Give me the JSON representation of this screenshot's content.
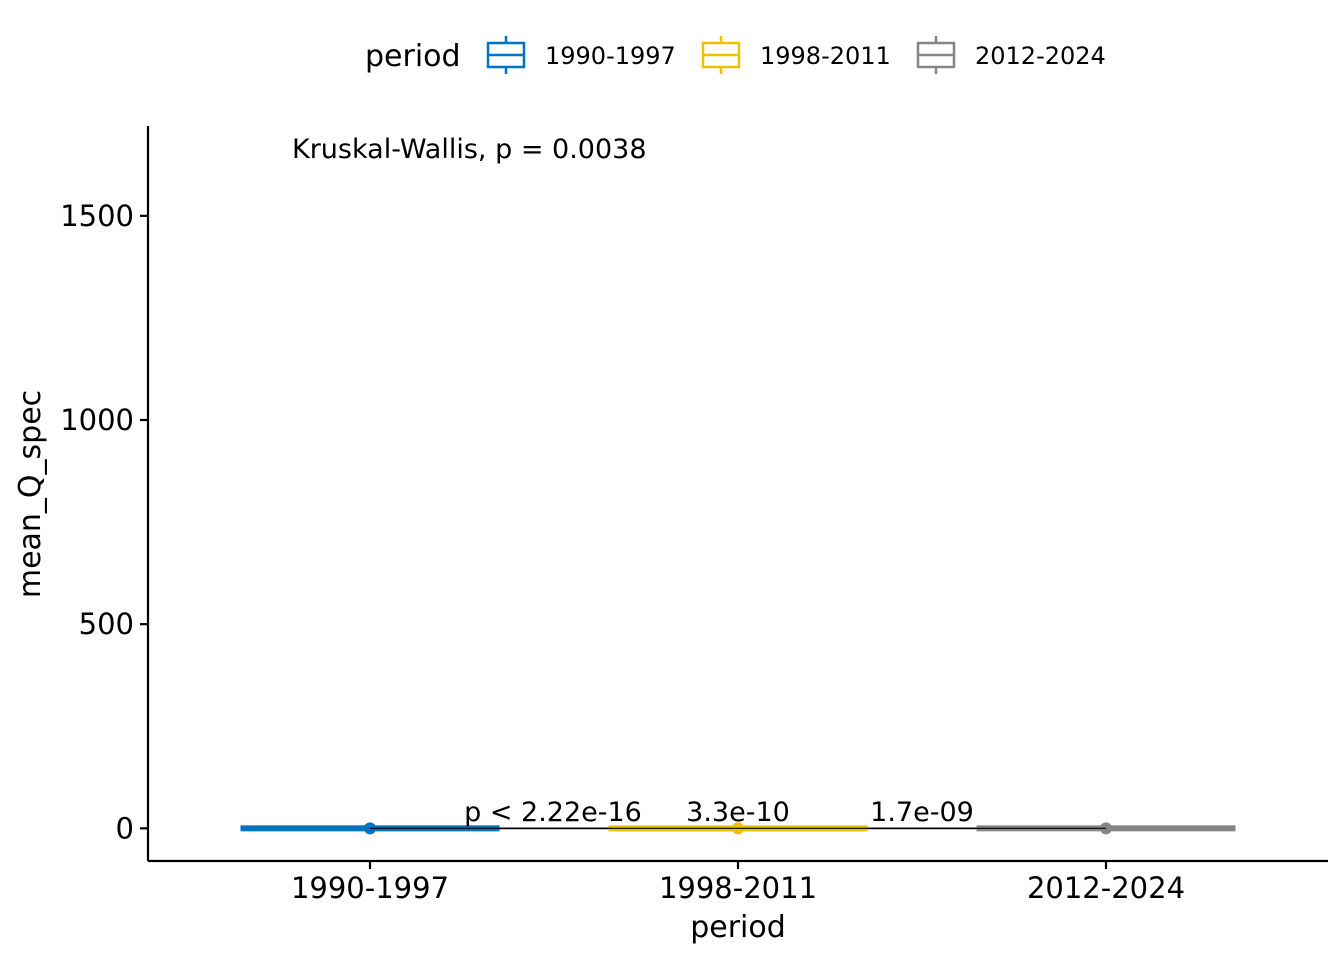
{
  "chart_data": {
    "type": "box",
    "xlabel": "period",
    "ylabel": "mean_Q_spec",
    "categories": [
      "1990-1997",
      "1998-2011",
      "2012-2024"
    ],
    "colors": [
      "#0073C2",
      "#EFC000",
      "#868686"
    ],
    "ylim": [
      -80,
      1720
    ],
    "yticks": [
      0,
      500,
      1000,
      1500
    ],
    "ytick_labels": [
      "0",
      "500",
      "1000",
      "1500"
    ],
    "legend": {
      "title": "period",
      "position": "top",
      "entries": [
        "1990-1997",
        "1998-2011",
        "2012-2024"
      ]
    },
    "series": [
      {
        "category": "1990-1997",
        "median": 0,
        "q1": 0,
        "q3": 0,
        "min": 0,
        "max": 0,
        "outliers": [
          0
        ]
      },
      {
        "category": "1998-2011",
        "median": 0,
        "q1": 0,
        "q3": 0,
        "min": 0,
        "max": 0,
        "outliers": [
          0
        ]
      },
      {
        "category": "2012-2024",
        "median": 0,
        "q1": 0,
        "q3": 0,
        "min": 0,
        "max": 0,
        "outliers": [
          0
        ]
      }
    ],
    "annotations": {
      "global_test": "Kruskal-Wallis, p = 0.0038",
      "pairwise": [
        {
          "from": "1990-1997",
          "to": "1998-2011",
          "label": "p < 2.22e-16",
          "y": 0
        },
        {
          "from": "1990-1997",
          "to": "2012-2024",
          "label": "3.3e-10",
          "y": 0
        },
        {
          "from": "1998-2011",
          "to": "2012-2024",
          "label": "1.7e-09",
          "y": 0
        }
      ]
    },
    "grid": false
  }
}
